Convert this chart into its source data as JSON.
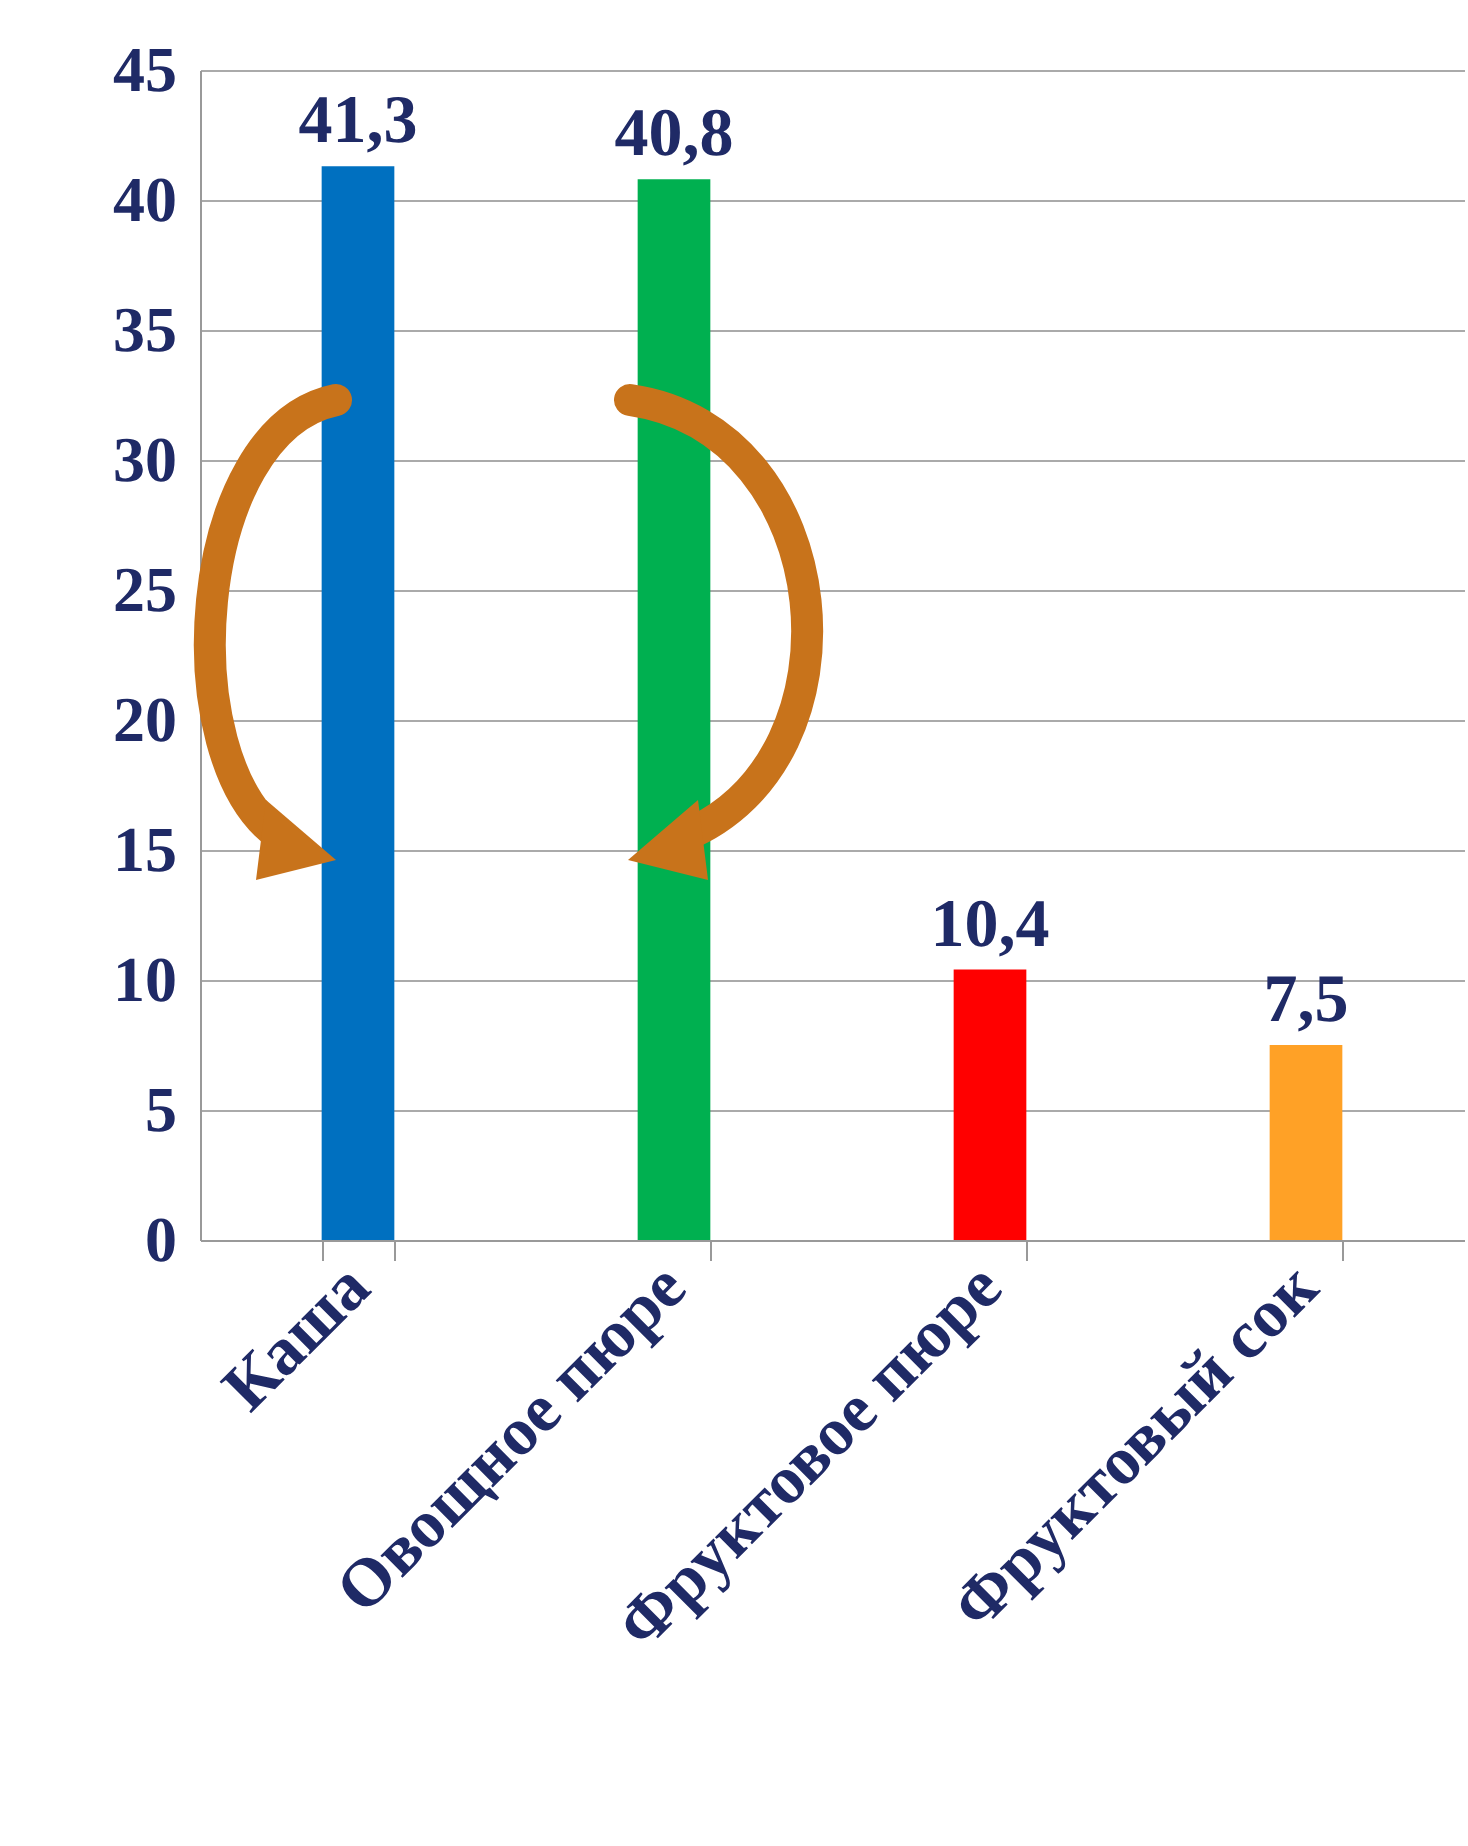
{
  "chart_data": {
    "type": "bar",
    "categories": [
      "Каша",
      "Овощное пюре",
      "Фруктовое пюре",
      "Фруктовый сок"
    ],
    "values": [
      41.3,
      40.8,
      10.4,
      7.5
    ],
    "colors": [
      "#0070c0",
      "#00b050",
      "#ff0000",
      "#ffa126"
    ],
    "value_labels": [
      "41,3",
      "40,8",
      "10,4",
      "7,5"
    ],
    "ylim": [
      0,
      45
    ],
    "yticks": [
      0,
      5,
      10,
      15,
      20,
      25,
      30,
      35,
      40,
      45
    ],
    "grid": "y"
  }
}
